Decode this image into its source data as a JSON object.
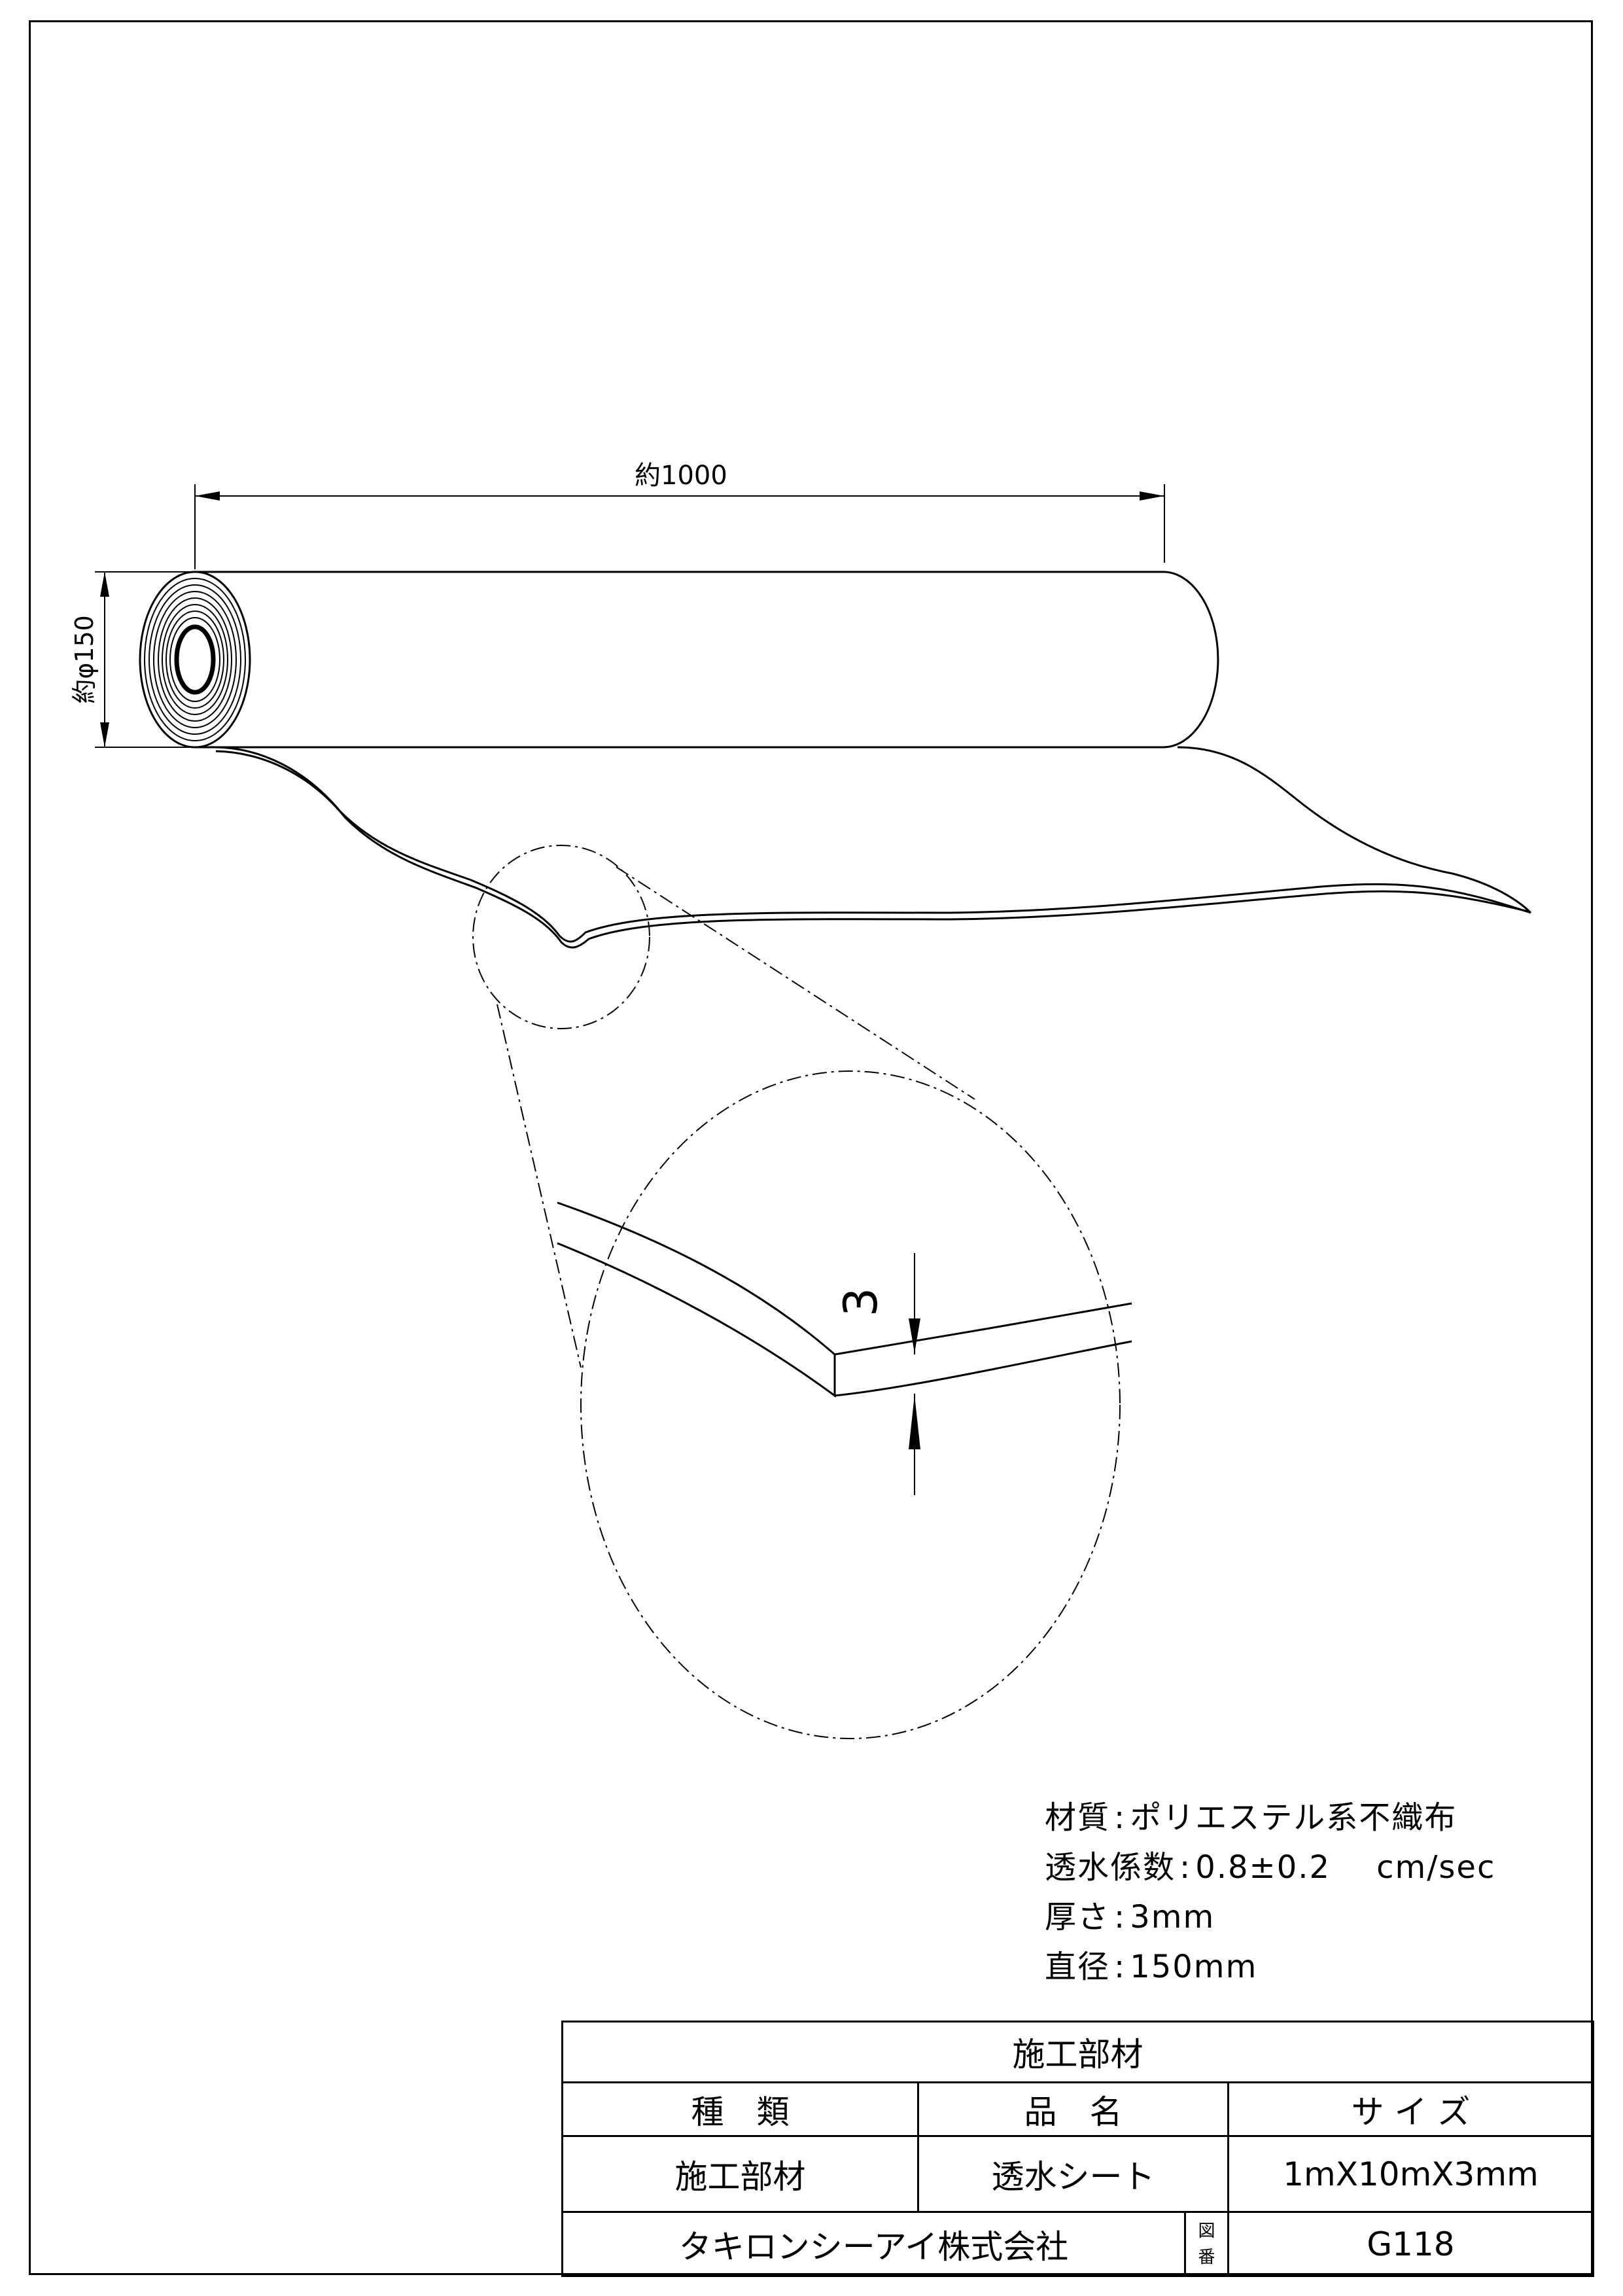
{
  "dimensions": {
    "length": "約1000",
    "diameter": "約φ150",
    "thickness": "3"
  },
  "specs": {
    "material_label": "材質",
    "material_value": "ポリエステル系不織布",
    "permeability_label": "透水係数",
    "permeability_value": "0.8±0.2",
    "permeability_unit": "cm/sec",
    "thickness_label": "厚さ",
    "thickness_value": "3mm",
    "diameter_label": "直径",
    "diameter_value": "150mm",
    "separator": ":"
  },
  "title_block": {
    "title": "施工部材",
    "headers": {
      "type": "種　類",
      "name": "品　名",
      "size": "サ イ ズ"
    },
    "row": {
      "type": "施工部材",
      "name": "透水シート",
      "size": "1mX10mX3mm"
    },
    "company": "タキロンシーアイ株式会社",
    "drawing_no_label_1": "図",
    "drawing_no_label_2": "番",
    "drawing_no": "G118"
  }
}
